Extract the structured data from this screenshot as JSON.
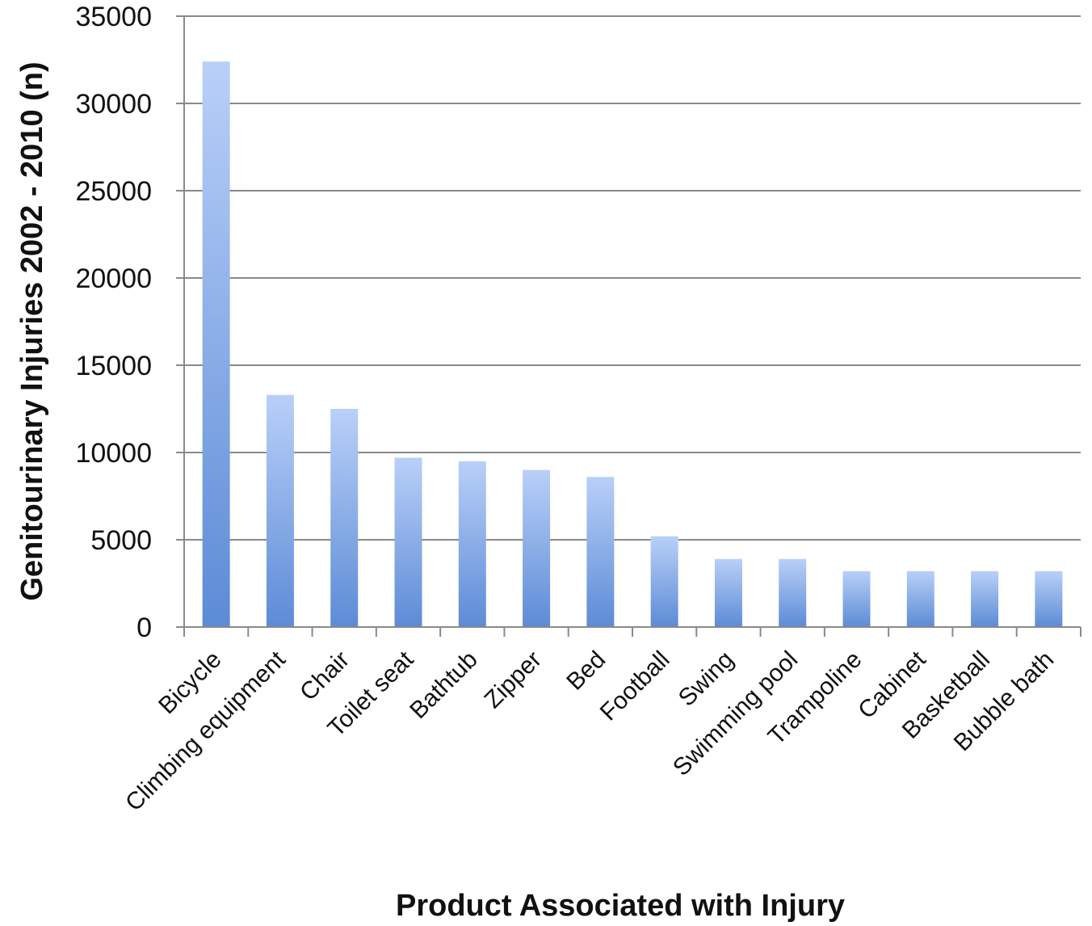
{
  "chart_data": {
    "type": "bar",
    "xlabel": "Product Associated with Injury",
    "ylabel": "Genitourinary Injuries 2002 - 2010 (n)",
    "ylim": [
      0,
      35000
    ],
    "yticks": [
      "0",
      "5000",
      "10000",
      "15000",
      "20000",
      "25000",
      "30000",
      "35000"
    ],
    "grid": true,
    "categories": [
      "Bicycle",
      "Climbing equipment",
      "Chair",
      "Toilet seat",
      "Bathtub",
      "Zipper",
      "Bed",
      "Football",
      "Swing",
      "Swimming pool",
      "Trampoline",
      "Cabinet",
      "Basketball",
      "Bubble bath"
    ],
    "values": [
      32400,
      13300,
      12500,
      9700,
      9500,
      9000,
      8600,
      5200,
      3900,
      3900,
      3200,
      3200,
      3200,
      3200
    ],
    "colors": {
      "bar_top": "#b9d0f8",
      "bar_bottom": "#5c8bd6",
      "grid": "#8a8a8a",
      "axis": "#8a8a8a"
    }
  }
}
